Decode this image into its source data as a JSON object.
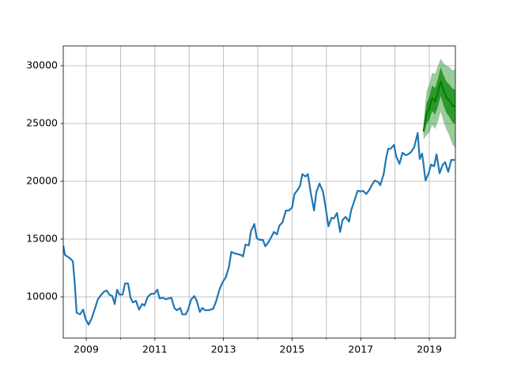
{
  "chart_data": {
    "type": "line",
    "xlim": [
      2008.33,
      2019.76
    ],
    "ylim": [
      6440,
      31710
    ],
    "xticks": [
      2009,
      2011,
      2013,
      2015,
      2017,
      2019
    ],
    "xminor_ticks": [
      2010,
      2012,
      2014,
      2016,
      2018
    ],
    "yticks": [
      10000,
      15000,
      20000,
      25000,
      30000
    ],
    "grid": true,
    "series": [
      {
        "color": "#1f77b4",
        "x": [
          2008.33,
          2008.38,
          2008.52,
          2008.61,
          2008.66,
          2008.72,
          2008.82,
          2008.91,
          2008.98,
          2009.07,
          2009.16,
          2009.25,
          2009.34,
          2009.44,
          2009.53,
          2009.6,
          2009.67,
          2009.76,
          2009.83,
          2009.9,
          2009.97,
          2010.06,
          2010.13,
          2010.22,
          2010.29,
          2010.36,
          2010.45,
          2010.54,
          2010.63,
          2010.7,
          2010.79,
          2010.89,
          2010.98,
          2011.07,
          2011.14,
          2011.23,
          2011.32,
          2011.39,
          2011.48,
          2011.57,
          2011.64,
          2011.74,
          2011.8,
          2011.9,
          2011.97,
          2012.06,
          2012.15,
          2012.22,
          2012.31,
          2012.38,
          2012.47,
          2012.56,
          2012.7,
          2012.79,
          2012.89,
          2012.98,
          2013.07,
          2013.16,
          2013.23,
          2013.32,
          2013.41,
          2013.51,
          2013.57,
          2013.64,
          2013.74,
          2013.8,
          2013.9,
          2013.97,
          2014.06,
          2014.15,
          2014.22,
          2014.31,
          2014.4,
          2014.47,
          2014.56,
          2014.63,
          2014.72,
          2014.82,
          2014.91,
          2015.0,
          2015.07,
          2015.16,
          2015.23,
          2015.3,
          2015.39,
          2015.46,
          2015.55,
          2015.64,
          2015.71,
          2015.8,
          2015.9,
          2015.97,
          2016.06,
          2016.15,
          2016.22,
          2016.31,
          2016.4,
          2016.47,
          2016.56,
          2016.66,
          2016.72,
          2016.82,
          2016.91,
          2017.0,
          2017.07,
          2017.16,
          2017.25,
          2017.32,
          2017.41,
          2017.51,
          2017.57,
          2017.67,
          2017.74,
          2017.8,
          2017.87,
          2017.97,
          2018.03,
          2018.13,
          2018.22,
          2018.31,
          2018.38,
          2018.47,
          2018.56,
          2018.66,
          2018.72,
          2018.79,
          2018.89,
          2018.98,
          2019.05,
          2019.14,
          2019.21,
          2019.3,
          2019.39,
          2019.46,
          2019.55,
          2019.64,
          2019.74
        ],
        "values": [
          14450,
          13630,
          13350,
          13080,
          11370,
          8630,
          8490,
          8900,
          8080,
          7600,
          8150,
          8970,
          9790,
          10200,
          10480,
          10550,
          10200,
          10070,
          9380,
          10620,
          10200,
          10200,
          11160,
          11160,
          9930,
          9520,
          9660,
          8900,
          9380,
          9250,
          10000,
          10270,
          10270,
          10620,
          9860,
          9930,
          9790,
          9860,
          9930,
          9040,
          8840,
          9040,
          8490,
          8490,
          8900,
          9790,
          10070,
          9660,
          8700,
          9040,
          8840,
          8840,
          8970,
          9660,
          10690,
          11300,
          11710,
          12600,
          13900,
          13770,
          13700,
          13630,
          13490,
          14520,
          14450,
          15690,
          16300,
          15070,
          14930,
          14930,
          14380,
          14730,
          15210,
          15620,
          15410,
          16170,
          16440,
          17470,
          17470,
          17740,
          18900,
          19250,
          19590,
          20620,
          20410,
          20620,
          18900,
          17470,
          19110,
          19800,
          19110,
          17880,
          16100,
          16850,
          16780,
          17260,
          15620,
          16640,
          16920,
          16510,
          17470,
          18360,
          19180,
          19110,
          19180,
          18900,
          19250,
          19660,
          20070,
          19940,
          19660,
          20620,
          21990,
          22810,
          22810,
          23150,
          22190,
          21510,
          22470,
          22260,
          22330,
          22540,
          22950,
          24180,
          21920,
          22400,
          20070,
          20690,
          21440,
          21300,
          22330,
          20690,
          21440,
          21650,
          20820,
          21850,
          21850
        ]
      },
      {
        "color": "green",
        "x": [
          2018.83,
          2018.92,
          2019.0,
          2019.08,
          2019.17,
          2019.25,
          2019.33,
          2019.42,
          2019.5,
          2019.58,
          2019.67,
          2019.75
        ],
        "values": [
          24320,
          25890,
          26300,
          27190,
          26920,
          27670,
          28630,
          27810,
          27260,
          26990,
          26580,
          26440
        ]
      }
    ],
    "bands": [
      {
        "color": "green",
        "alpha": 0.4,
        "x": [
          2018.83,
          2018.92,
          2019.0,
          2019.08,
          2019.17,
          2019.25,
          2019.33,
          2019.42,
          2019.5,
          2019.58,
          2019.67,
          2019.75
        ],
        "lower": [
          23620,
          23990,
          24200,
          24890,
          24520,
          25170,
          26030,
          25110,
          24460,
          23990,
          23200,
          22900
        ],
        "upper": [
          25020,
          27790,
          28400,
          29400,
          29300,
          30000,
          30600,
          30200,
          30000,
          29900,
          29600,
          29700
        ]
      },
      {
        "color": "green",
        "alpha": 0.7,
        "x": [
          2018.83,
          2018.92,
          2019.0,
          2019.08,
          2019.17,
          2019.25,
          2019.33,
          2019.42,
          2019.5,
          2019.58,
          2019.67,
          2019.75
        ],
        "lower": [
          24020,
          24990,
          25300,
          26090,
          25770,
          26470,
          27380,
          26510,
          25910,
          25590,
          25130,
          24940
        ],
        "upper": [
          24620,
          26790,
          27300,
          28290,
          28070,
          28870,
          29880,
          29110,
          28610,
          28390,
          28030,
          27940
        ]
      }
    ]
  }
}
